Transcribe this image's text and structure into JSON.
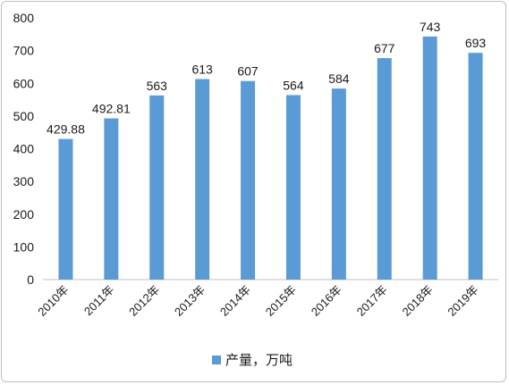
{
  "chart_data": {
    "type": "bar",
    "categories": [
      "2010年",
      "2011年",
      "2012年",
      "2013年",
      "2014年",
      "2015年",
      "2016年",
      "2017年",
      "2018年",
      "2019年"
    ],
    "series": [
      {
        "name": "产量，万吨",
        "values": [
          429.88,
          492.81,
          563,
          613,
          607,
          564,
          584,
          677,
          743,
          693
        ],
        "labels": [
          "429.88",
          "492.81",
          "563",
          "613",
          "607",
          "564",
          "584",
          "677",
          "743",
          "693"
        ],
        "color": "#5b9bd5"
      }
    ],
    "yticks": [
      "0",
      "100",
      "200",
      "300",
      "400",
      "500",
      "600",
      "700",
      "800"
    ],
    "ylim": [
      0,
      800
    ],
    "grid": false,
    "legend_position": "bottom"
  }
}
